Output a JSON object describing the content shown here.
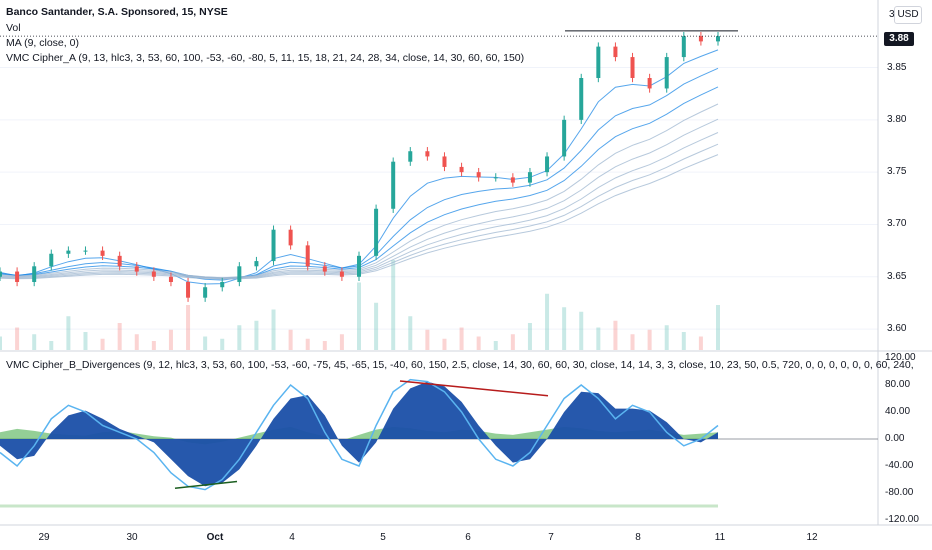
{
  "header": {
    "title": "Banco Santander, S.A. Sponsored, 15, NYSE",
    "vol": "Vol",
    "ma": "MA (9, close, 0)",
    "cipher_a": "VMC Cipher_A (9, 13, hlc3, 3, 53, 60, 100, -53, -60, -80, 5, 11, 15, 18, 21, 24, 28, 34, close, 14, 30, 60, 60, 150)",
    "cipher_b": "VMC Cipher_B_Divergences (9, 12, hlc3, 3, 53, 60, 100, -53, -60, -75, 45, -65, 15, -40, 60, 150, 2.5, close, 14, 30, 60, 60, 30, close, 14, 14, 3, 3, close, 10, 23, 50, 0.5, 720, 0, 0, 0, 0, 0, 0, 60, 240,"
  },
  "currency": "USD",
  "last_price": "3.88",
  "colors": {
    "up": "#26a69a",
    "down": "#ef5350",
    "ribbon": "#1e88e5",
    "wave_fill": "#1a4fa8",
    "wave_line": "#5ab4f0",
    "money_flow_green": "#4caf50",
    "money_flow_yellow": "#f5e35a"
  },
  "chart_data": [
    {
      "type": "line",
      "name": "price",
      "yaxis_ticks": [
        "3",
        "3.85",
        "3.80",
        "3.75",
        "3.70",
        "3.65",
        "3.60"
      ],
      "ylim": [
        3.58,
        3.905
      ],
      "x_ticks": [
        "29",
        "30",
        "Oct",
        "4",
        "5",
        "6",
        "7",
        "8",
        "11",
        "12"
      ],
      "series": [
        {
          "name": "close",
          "x": [
            0,
            4,
            8,
            12,
            16,
            20,
            24,
            28,
            32,
            36,
            40,
            44,
            48,
            52,
            56,
            60,
            64,
            68,
            72,
            76,
            80,
            84,
            88,
            92,
            96,
            100,
            104,
            108,
            112,
            116,
            120,
            124,
            128,
            132,
            136,
            140,
            144,
            148,
            152,
            156,
            160,
            164,
            168
          ],
          "values": [
            3.655,
            3.645,
            3.66,
            3.672,
            3.675,
            3.675,
            3.67,
            3.66,
            3.655,
            3.65,
            3.645,
            3.63,
            3.64,
            3.645,
            3.66,
            3.665,
            3.695,
            3.68,
            3.66,
            3.655,
            3.65,
            3.67,
            3.715,
            3.76,
            3.77,
            3.765,
            3.755,
            3.75,
            3.745,
            3.745,
            3.74,
            3.75,
            3.765,
            3.8,
            3.84,
            3.87,
            3.86,
            3.84,
            3.83,
            3.86,
            3.88,
            3.875,
            3.88
          ]
        }
      ],
      "volume": [
        12,
        20,
        14,
        8,
        30,
        16,
        10,
        24,
        14,
        8,
        18,
        40,
        12,
        10,
        22,
        26,
        36,
        18,
        10,
        8,
        14,
        60,
        42,
        80,
        30,
        18,
        10,
        20,
        12,
        8,
        14,
        24,
        50,
        38,
        34,
        20,
        26,
        14,
        18,
        22,
        16,
        12,
        40
      ]
    },
    {
      "type": "area",
      "name": "cipher_b",
      "yaxis_ticks": [
        "120.00",
        "80.00",
        "40.00",
        "0.00",
        "-40.00",
        "-80.00",
        "-120.00"
      ],
      "ylim": [
        -120,
        120
      ],
      "series": [
        {
          "name": "wave1",
          "values": [
            -20,
            -40,
            -10,
            30,
            50,
            40,
            20,
            10,
            0,
            -20,
            -50,
            -70,
            -75,
            -60,
            -30,
            10,
            50,
            80,
            60,
            10,
            -30,
            -40,
            20,
            70,
            88,
            85,
            70,
            40,
            0,
            -30,
            -40,
            -20,
            20,
            60,
            80,
            60,
            30,
            50,
            40,
            10,
            -10,
            0,
            20
          ]
        },
        {
          "name": "wave2",
          "values": [
            -10,
            -30,
            -25,
            10,
            35,
            42,
            30,
            15,
            5,
            -5,
            -30,
            -55,
            -70,
            -65,
            -45,
            -10,
            30,
            60,
            65,
            35,
            -10,
            -35,
            -5,
            45,
            75,
            85,
            78,
            55,
            20,
            -10,
            -35,
            -30,
            0,
            40,
            70,
            68,
            45,
            45,
            42,
            25,
            0,
            -5,
            10
          ]
        },
        {
          "name": "money_flow",
          "values": [
            10,
            15,
            12,
            8,
            6,
            5,
            10,
            12,
            8,
            4,
            2,
            -5,
            -8,
            -4,
            2,
            8,
            14,
            18,
            10,
            4,
            -2,
            6,
            14,
            18,
            16,
            12,
            10,
            14,
            12,
            8,
            6,
            10,
            14,
            18,
            16,
            12,
            10,
            12,
            14,
            10,
            6,
            8,
            10
          ]
        }
      ]
    }
  ]
}
